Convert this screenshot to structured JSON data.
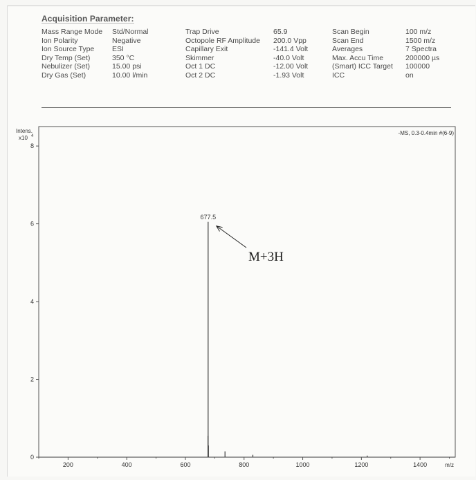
{
  "acquisition": {
    "title": "Acquisition Parameter:",
    "groups": [
      {
        "labels": [
          "Mass Range Mode",
          "Ion Polarity",
          "Ion Source Type",
          "Dry Temp (Set)",
          "Nebulizer (Set)",
          "Dry Gas (Set)"
        ],
        "values": [
          "Std/Normal",
          "Negative",
          "ESI",
          "350 °C",
          "15.00 psi",
          "10.00 l/min"
        ]
      },
      {
        "labels": [
          "Trap Drive",
          "Octopole RF Amplitude",
          "Capillary Exit",
          "Skimmer",
          "Oct 1 DC",
          "Oct 2 DC"
        ],
        "values": [
          "65.9",
          "200.0 Vpp",
          "-141.4 Volt",
          "-40.0 Volt",
          "-12.00 Volt",
          "-1.93 Volt"
        ]
      },
      {
        "labels": [
          "Scan Begin",
          "Scan End",
          "Averages",
          "Max. Accu Time",
          "(Smart) ICC Target",
          "ICC"
        ],
        "values": [
          "100 m/z",
          "1500 m/z",
          "7 Spectra",
          "200000 µs",
          "100000",
          "on"
        ]
      }
    ]
  },
  "chart_data": {
    "type": "line",
    "spectrum_label": "-MS, 0.3-0.4min #(6-9)",
    "y_axis_label": "Intens.",
    "y_multiplier": "x10",
    "y_multiplier_exp": "4",
    "x_unit": "m/z",
    "xlim": [
      100,
      1520
    ],
    "ylim": [
      0,
      8.5
    ],
    "xticks": [
      200,
      400,
      600,
      800,
      1000,
      1200,
      1400
    ],
    "yticks": [
      0,
      2,
      4,
      6,
      8
    ],
    "peaks": [
      {
        "mz": 677.5,
        "intensity": 6.05,
        "label": "677.5"
      },
      {
        "mz": 677.0,
        "intensity": 0.55
      },
      {
        "mz": 678.5,
        "intensity": 0.3
      },
      {
        "mz": 735.0,
        "intensity": 0.15
      },
      {
        "mz": 830.0,
        "intensity": 0.06
      },
      {
        "mz": 1220.0,
        "intensity": 0.04
      }
    ],
    "annotation": {
      "text": "M+3H",
      "target_mz": 677.5
    }
  },
  "colors": {
    "axis": "#555555",
    "trace": "#3a3a3a",
    "text": "#333333"
  }
}
